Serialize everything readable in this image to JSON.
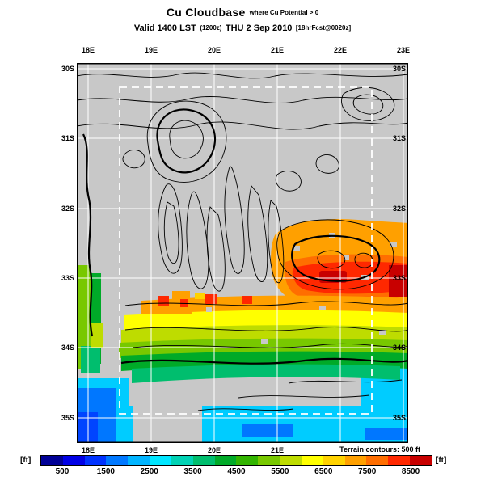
{
  "header": {
    "title": "Cu Cloudbase",
    "title_qualifier": "where Cu Potential > 0",
    "valid": {
      "part1": "Valid 1400 LST",
      "part2": "(1200z)",
      "part3": "THU 2 Sep 2010",
      "part4": "[18hrFcst@0020z]"
    }
  },
  "map": {
    "top_labels": [
      "18E",
      "19E",
      "20E",
      "21E",
      "22E",
      "23E"
    ],
    "bottom_labels": [
      "18E",
      "19E",
      "20E",
      "21E"
    ],
    "left_labels": [
      "30S",
      "31S",
      "32S",
      "33S",
      "34S",
      "35S"
    ],
    "right_labels": [
      "30S",
      "31S",
      "32S",
      "33S",
      "34S",
      "35S"
    ],
    "footnote": "Terrain contours: 500 ft"
  },
  "colorbar": {
    "unit_left": "[ft]",
    "unit_right": "[ft]",
    "tick_labels": [
      "500",
      "1500",
      "2500",
      "3500",
      "4500",
      "5500",
      "6500",
      "7500",
      "8500"
    ],
    "cell_colors": [
      "#000096",
      "#0000e6",
      "#0032ff",
      "#0078ff",
      "#00b4ff",
      "#00e6ff",
      "#00d2b4",
      "#00be6e",
      "#00aa28",
      "#32b400",
      "#78c800",
      "#bedc00",
      "#ffff00",
      "#ffd200",
      "#ffa000",
      "#ff6e00",
      "#ff2800",
      "#c80000"
    ]
  },
  "chart_data": {
    "type": "heatmap",
    "title": "Cu Cloudbase where Cu Potential > 0",
    "valid_time": "Valid 1400 LST (1200z) THU 2 Sep 2010 [18hrFcst@0020z]",
    "units": "ft",
    "x_ticks": [
      "18E",
      "19E",
      "20E",
      "21E",
      "22E",
      "23E"
    ],
    "y_ticks": [
      "30S",
      "31S",
      "32S",
      "33S",
      "34S",
      "35S"
    ],
    "color_scale": {
      "tick_values_ft": [
        500,
        1500,
        2500,
        3500,
        4500,
        5500,
        6500,
        7500,
        8500
      ],
      "cell_step_ft": 500,
      "range_ft": [
        0,
        9000
      ],
      "colors": [
        "#000096",
        "#0000e6",
        "#0032ff",
        "#0078ff",
        "#00b4ff",
        "#00e6ff",
        "#00d2b4",
        "#00be6e",
        "#00aa28",
        "#32b400",
        "#78c800",
        "#bedc00",
        "#ffff00",
        "#ffd200",
        "#ffa000",
        "#ff6e00",
        "#ff2800",
        "#c80000"
      ]
    },
    "terrain_contour_interval_ft": 500,
    "overlays": [
      "terrain contours (black lines)",
      "inner model domain (white dashed box)",
      "lat/lon grid (white lines)"
    ],
    "regions": [
      {
        "area": "northern interior (no Cu potential)",
        "value": "gray / terrain only"
      },
      {
        "area": "east-central interior ~20.5E-23E near 33S",
        "cloudbase_ft": "6500-8500+"
      },
      {
        "area": "band across ~33.7S-34.3S",
        "cloudbase_ft": "3500-6500"
      },
      {
        "area": "west coast strip ~18E 33S-34S",
        "cloudbase_ft": "3500-5000"
      },
      {
        "area": "south coast and ocean",
        "cloudbase_ft": "500-2500"
      }
    ]
  }
}
